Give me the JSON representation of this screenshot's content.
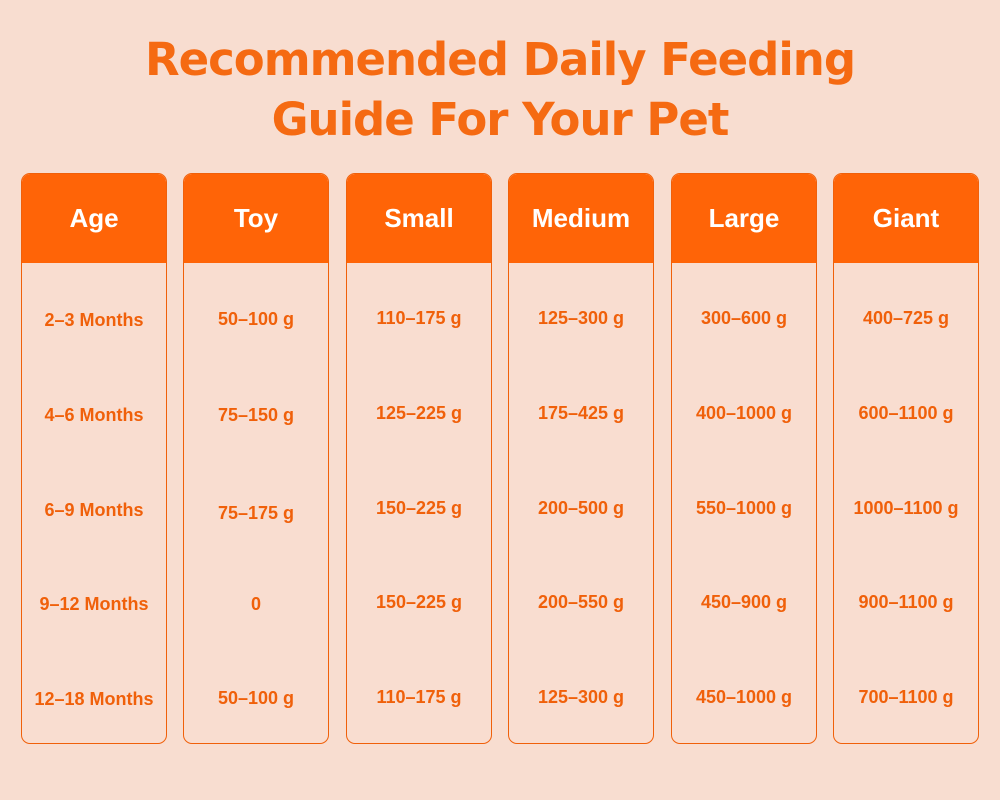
{
  "title": {
    "line1": "Recommended Daily Feeding",
    "line2": "Guide For Your Pet"
  },
  "colors": {
    "background": "#f8ddd0",
    "accent": "#ff6407",
    "text": "#f0600a",
    "header_text": "#ffffff"
  },
  "table": {
    "columns": [
      {
        "header": "Age",
        "cells": [
          "2–3 Months",
          "4–6 Months",
          "6–9 Months",
          "9–12 Months",
          "12–18 Months"
        ]
      },
      {
        "header": "Toy",
        "cells": [
          "50–100 g",
          "75–150 g",
          "75–175 g",
          "0",
          "50–100 g"
        ]
      },
      {
        "header": "Small",
        "cells": [
          "110–175 g",
          "125–225 g",
          "150–225 g",
          "150–225 g",
          "110–175 g"
        ]
      },
      {
        "header": "Medium",
        "cells": [
          "125–300 g",
          "175–425 g",
          "200–500 g",
          "200–550 g",
          "125–300 g"
        ]
      },
      {
        "header": "Large",
        "cells": [
          "300–600 g",
          "400–1000 g",
          "550–1000 g",
          "450–900 g",
          "450–1000 g"
        ]
      },
      {
        "header": "Giant",
        "cells": [
          "400–725 g",
          "600–1100 g",
          "1000–1100 g",
          "900–1100 g",
          "700–1100 g"
        ]
      }
    ]
  }
}
